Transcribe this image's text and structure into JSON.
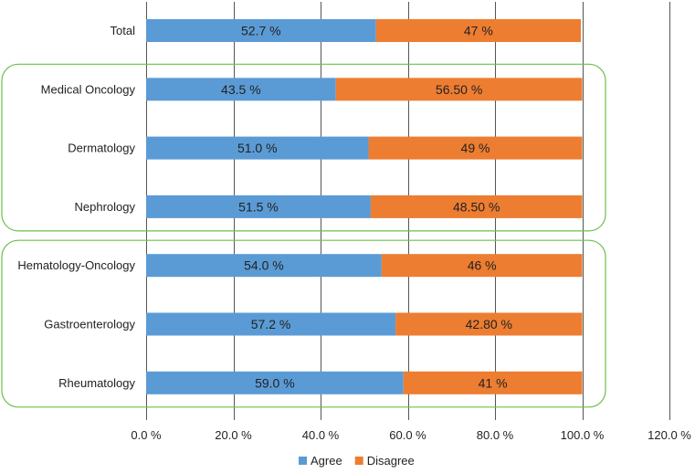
{
  "chart_data": {
    "type": "bar",
    "orientation": "horizontal",
    "stacked": true,
    "title": "",
    "xlabel": "",
    "ylabel": "",
    "xlim": [
      0,
      120
    ],
    "x_ticks": [
      0,
      20,
      40,
      60,
      80,
      100,
      120
    ],
    "x_tick_labels": [
      "0.0 %",
      "20.0 %",
      "40.0 %",
      "60.0 %",
      "80.0 %",
      "100.0 %",
      "120.0 %"
    ],
    "categories": [
      "Total",
      "Medical Oncology",
      "Dermatology",
      "Nephrology",
      "Hematology-Oncology",
      "Gastroenterology",
      "Rheumatology"
    ],
    "series": [
      {
        "name": "Agree",
        "color": "#5b9bd5",
        "values": [
          52.7,
          43.5,
          51.0,
          51.5,
          54.0,
          57.2,
          59.0
        ],
        "labels": [
          "52.7 %",
          "43.5 %",
          "51.0 %",
          "51.5 %",
          "54.0 %",
          "57.2 %",
          "59.0 %"
        ]
      },
      {
        "name": "Disagree",
        "color": "#ed7d31",
        "values": [
          47,
          56.5,
          49,
          48.5,
          46,
          42.8,
          41
        ],
        "labels": [
          "47 %",
          "56.50 %",
          "49 %",
          "48.50 %",
          "46 %",
          "42.80 %",
          "41 %"
        ]
      }
    ],
    "legend": {
      "position": "bottom",
      "entries": [
        "Agree",
        "Disagree"
      ]
    },
    "grid": true,
    "group_boxes": [
      {
        "categories": [
          "Medical Oncology",
          "Dermatology",
          "Nephrology"
        ],
        "color": "#6cc04a"
      },
      {
        "categories": [
          "Hematology-Oncology",
          "Gastroenterology",
          "Rheumatology"
        ],
        "color": "#6cc04a"
      }
    ]
  }
}
